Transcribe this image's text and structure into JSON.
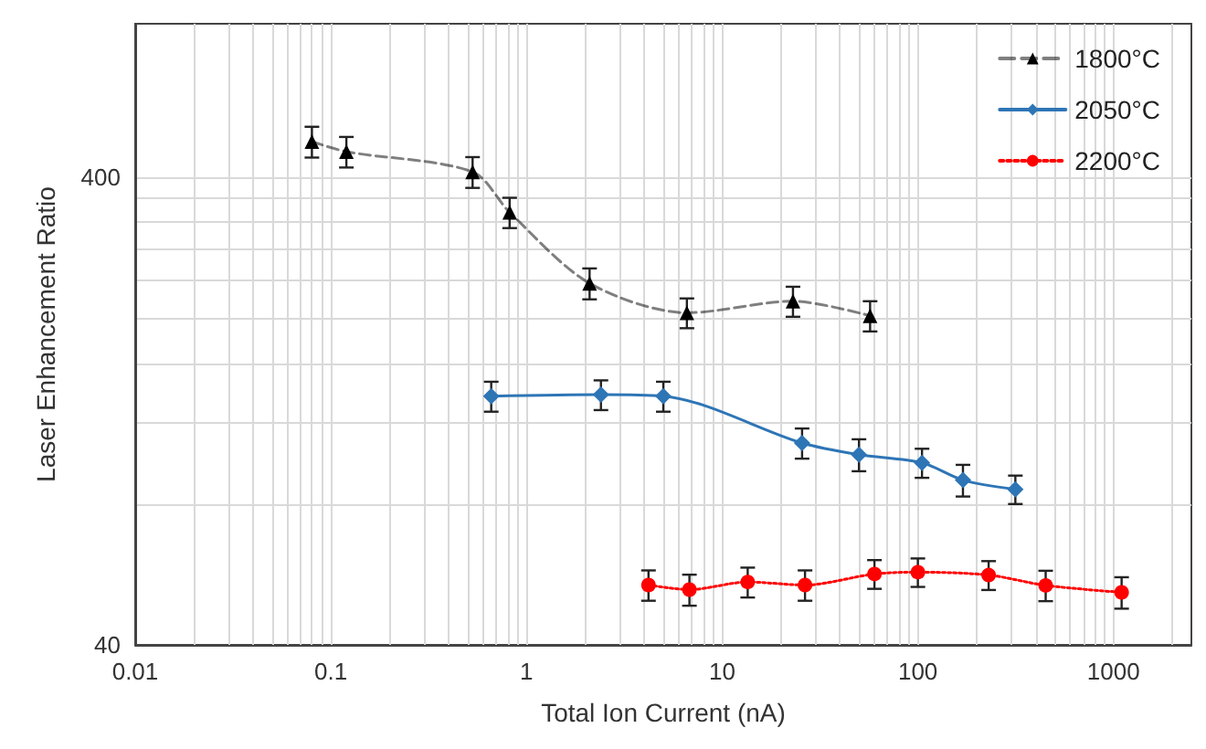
{
  "chart_data": {
    "type": "line",
    "xlabel": "Total Ion Current (nA)",
    "ylabel": "Laser Enhancement Ratio",
    "log": "xy",
    "grid": true,
    "legend": "top right",
    "xlim": [
      0.01,
      2500
    ],
    "ylim": [
      40,
      850
    ],
    "xticks": [
      0.01,
      {
        "value": 0.02,
        "label": null
      },
      {
        "value": 0.03,
        "label": null
      },
      {
        "value": 0.04,
        "label": null
      },
      {
        "value": 0.05,
        "label": null
      },
      {
        "value": 0.06,
        "label": null
      },
      {
        "value": 0.07,
        "label": null
      },
      {
        "value": 0.08,
        "label": null
      },
      {
        "value": 0.09,
        "label": null
      },
      0.1,
      {
        "value": 0.2,
        "label": null
      },
      {
        "value": 0.3,
        "label": null
      },
      {
        "value": 0.4,
        "label": null
      },
      {
        "value": 0.5,
        "label": null
      },
      {
        "value": 0.6,
        "label": null
      },
      {
        "value": 0.7,
        "label": null
      },
      {
        "value": 0.8,
        "label": null
      },
      {
        "value": 0.9,
        "label": null
      },
      1,
      {
        "value": 2,
        "label": null
      },
      {
        "value": 3,
        "label": null
      },
      {
        "value": 4,
        "label": null
      },
      {
        "value": 5,
        "label": null
      },
      {
        "value": 6,
        "label": null
      },
      {
        "value": 7,
        "label": null
      },
      {
        "value": 8,
        "label": null
      },
      {
        "value": 9,
        "label": null
      },
      10,
      {
        "value": 20,
        "label": null
      },
      {
        "value": 30,
        "label": null
      },
      {
        "value": 40,
        "label": null
      },
      {
        "value": 50,
        "label": null
      },
      {
        "value": 60,
        "label": null
      },
      {
        "value": 70,
        "label": null
      },
      {
        "value": 80,
        "label": null
      },
      {
        "value": 90,
        "label": null
      },
      100,
      {
        "value": 200,
        "label": null
      },
      {
        "value": 300,
        "label": null
      },
      {
        "value": 400,
        "label": null
      },
      {
        "value": 500,
        "label": null
      },
      {
        "value": 600,
        "label": null
      },
      {
        "value": 700,
        "label": null
      },
      {
        "value": 800,
        "label": null
      },
      {
        "value": 900,
        "label": null
      },
      1000,
      {
        "value": 2000,
        "label": null
      }
    ],
    "yticks": [
      40,
      {
        "value": 80,
        "label": null
      },
      {
        "value": 120,
        "label": null
      },
      {
        "value": 160,
        "label": null
      },
      {
        "value": 200,
        "label": null
      },
      {
        "value": 240,
        "label": null
      },
      {
        "value": 280,
        "label": null
      },
      {
        "value": 320,
        "label": null
      },
      {
        "value": 360,
        "label": null
      },
      400
    ],
    "series": [
      {
        "name": "1800°C",
        "color": "#000000",
        "marker": "triangle",
        "line_style": "dashed",
        "x": [
          0.08,
          0.12,
          0.53,
          0.82,
          2.1,
          6.6,
          23,
          57
        ],
        "values": [
          476,
          453,
          410,
          336,
          237,
          205,
          217,
          202
        ],
        "errors": [
          36,
          34,
          31,
          25,
          18,
          15,
          16,
          15
        ]
      },
      {
        "name": "2050°C",
        "color": "#2e75b6",
        "marker": "diamond",
        "line_style": "solid",
        "x": [
          0.66,
          2.4,
          5.0,
          25.6,
          50,
          105,
          170,
          315
        ],
        "values": [
          136,
          137,
          136,
          108,
          102,
          98,
          90,
          86
        ],
        "errors": [
          10,
          10,
          10,
          8,
          8,
          7,
          7,
          6
        ]
      },
      {
        "name": "2200°C",
        "color": "#ff0000",
        "marker": "circle",
        "line_style": "dotted",
        "x": [
          4.2,
          6.8,
          13.5,
          26.5,
          60,
          100,
          230,
          450,
          1100
        ],
        "values": [
          53.7,
          52.5,
          54.5,
          53.7,
          56.7,
          57.2,
          56.4,
          53.6,
          51.8
        ],
        "errors": [
          4,
          4,
          4,
          4,
          4,
          4,
          4,
          4,
          4
        ]
      }
    ]
  }
}
